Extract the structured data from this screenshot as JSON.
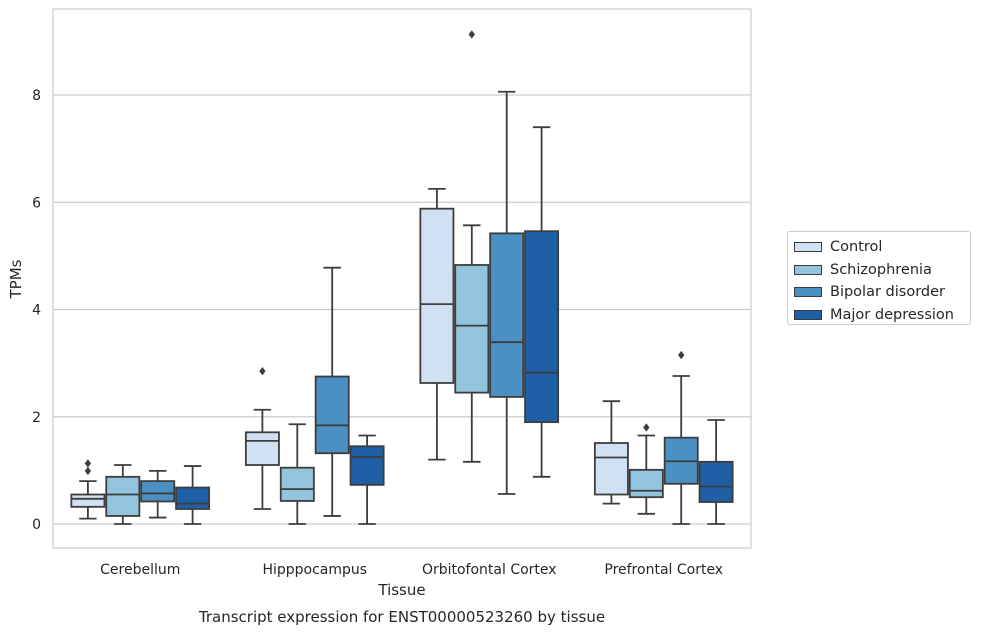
{
  "chart_data": {
    "type": "box",
    "title": "",
    "caption": "Transcript expression for ENST00000523260 by tissue",
    "xlabel": "Tissue",
    "ylabel": "TPMs",
    "ylim": [
      -0.45,
      9.7
    ],
    "yticks": [
      0,
      2,
      4,
      6,
      8
    ],
    "grid": "horizontal",
    "legend_position": "right",
    "categories": [
      "Cerebellum",
      "Hipppocampus",
      "Orbitofontal Cortex",
      "Prefrontal Cortex"
    ],
    "series": [
      {
        "name": "Control",
        "color": "#cfe1f2",
        "boxes": [
          {
            "whislo": 0.1,
            "q1": 0.32,
            "med": 0.47,
            "q3": 0.55,
            "whishi": 0.8,
            "fliers": [
              0.99,
              1.13
            ]
          },
          {
            "whislo": 0.28,
            "q1": 1.1,
            "med": 1.55,
            "q3": 1.71,
            "whishi": 2.13,
            "fliers": [
              2.85
            ]
          },
          {
            "whislo": 1.2,
            "q1": 2.63,
            "med": 4.1,
            "q3": 5.88,
            "whishi": 6.25,
            "fliers": []
          },
          {
            "whislo": 0.38,
            "q1": 0.55,
            "med": 1.24,
            "q3": 1.51,
            "whishi": 2.29,
            "fliers": []
          }
        ]
      },
      {
        "name": "Schizophrenia",
        "color": "#93c4de",
        "boxes": [
          {
            "whislo": 0.0,
            "q1": 0.15,
            "med": 0.55,
            "q3": 0.88,
            "whishi": 1.1,
            "fliers": []
          },
          {
            "whislo": 0.0,
            "q1": 0.43,
            "med": 0.65,
            "q3": 1.05,
            "whishi": 1.86,
            "fliers": []
          },
          {
            "whislo": 1.16,
            "q1": 2.45,
            "med": 3.7,
            "q3": 4.83,
            "whishi": 5.57,
            "fliers": [
              9.13
            ]
          },
          {
            "whislo": 0.19,
            "q1": 0.5,
            "med": 0.62,
            "q3": 1.01,
            "whishi": 1.65,
            "fliers": [
              1.8
            ]
          }
        ]
      },
      {
        "name": "Bipolar disorder",
        "color": "#4a90c2",
        "boxes": [
          {
            "whislo": 0.12,
            "q1": 0.42,
            "med": 0.57,
            "q3": 0.8,
            "whishi": 0.99,
            "fliers": []
          },
          {
            "whislo": 0.15,
            "q1": 1.32,
            "med": 1.84,
            "q3": 2.75,
            "whishi": 4.78,
            "fliers": []
          },
          {
            "whislo": 0.56,
            "q1": 2.37,
            "med": 3.39,
            "q3": 5.42,
            "whishi": 8.06,
            "fliers": []
          },
          {
            "whislo": 0.0,
            "q1": 0.75,
            "med": 1.17,
            "q3": 1.61,
            "whishi": 2.76,
            "fliers": [
              3.15
            ]
          }
        ]
      },
      {
        "name": "Major depression",
        "color": "#1f5fa5",
        "boxes": [
          {
            "whislo": 0.0,
            "q1": 0.28,
            "med": 0.38,
            "q3": 0.68,
            "whishi": 1.08,
            "fliers": []
          },
          {
            "whislo": 0.0,
            "q1": 0.73,
            "med": 1.25,
            "q3": 1.45,
            "whishi": 1.65,
            "fliers": []
          },
          {
            "whislo": 0.88,
            "q1": 1.9,
            "med": 2.82,
            "q3": 5.46,
            "whishi": 7.4,
            "fliers": []
          },
          {
            "whislo": 0.0,
            "q1": 0.41,
            "med": 0.7,
            "q3": 1.16,
            "whishi": 1.94,
            "fliers": []
          }
        ]
      }
    ]
  }
}
